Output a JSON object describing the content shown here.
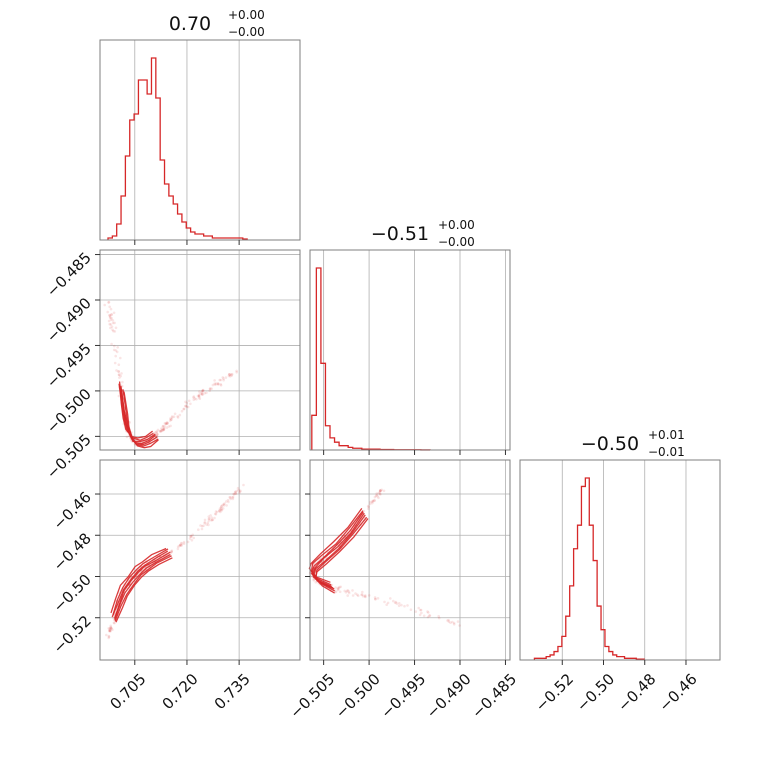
{
  "color": "#d62728",
  "chart_data": [
    {
      "type": "histogram",
      "panel": "hist-0",
      "title": {
        "value": "0.70",
        "plus": "+0.00",
        "minus": "−0.00"
      },
      "xlim": [
        0.695,
        0.7525
      ],
      "x_ticks": [
        0.705,
        0.72,
        0.735
      ],
      "x_ticklabels": [],
      "bins": {
        "start": 0.6973,
        "width": 0.00125,
        "counts": [
          1,
          2,
          8,
          22,
          42,
          60,
          63,
          80,
          80,
          73,
          91,
          71,
          40,
          28,
          22,
          18,
          13,
          9,
          6,
          4,
          3,
          3,
          2,
          2,
          1,
          1,
          1,
          1,
          1,
          1,
          1,
          0.5
        ]
      }
    },
    {
      "type": "scatter",
      "panel": "scatter-1-0",
      "xlim": [
        0.695,
        0.7525
      ],
      "ylim": [
        -0.5065,
        -0.4845
      ],
      "x_ticks": [
        0.705,
        0.72,
        0.735
      ],
      "x_ticklabels": [],
      "y_ticks": [
        -0.485,
        -0.49,
        -0.495,
        -0.5,
        -0.505
      ],
      "y_ticklabels": [
        "−0.485",
        "−0.490",
        "−0.495",
        "−0.500",
        "−0.505"
      ],
      "curve": {
        "x": [
          0.6975,
          0.699,
          0.7,
          0.701,
          0.702,
          0.7025,
          0.7035,
          0.705,
          0.707,
          0.709,
          0.711,
          0.713,
          0.716,
          0.72,
          0.725,
          0.73,
          0.736
        ],
        "y": [
          -0.4903,
          -0.4935,
          -0.4965,
          -0.4995,
          -0.502,
          -0.5035,
          -0.5048,
          -0.5056,
          -0.5057,
          -0.5055,
          -0.5049,
          -0.5041,
          -0.5029,
          -0.5015,
          -0.5001,
          -0.4988,
          -0.4975
        ]
      }
    },
    {
      "type": "histogram",
      "panel": "hist-1",
      "title": {
        "value": "−0.51",
        "plus": "+0.00",
        "minus": "−0.00"
      },
      "xlim": [
        -0.5065,
        -0.4845
      ],
      "x_ticks": [
        -0.505,
        -0.5,
        -0.495,
        -0.49,
        -0.485
      ],
      "x_ticklabels": [],
      "bins": {
        "start": -0.5063,
        "width": 0.0005,
        "counts": [
          40,
          210,
          100,
          28,
          14,
          9,
          5,
          5,
          3,
          2,
          2,
          1,
          1,
          1,
          1,
          0.5,
          0.5,
          0.5,
          0.3,
          0.3,
          0.3,
          0.2,
          0.2,
          0.2,
          0.1,
          0.1
        ]
      }
    },
    {
      "type": "scatter",
      "panel": "scatter-2-0",
      "xlim": [
        0.695,
        0.7525
      ],
      "ylim": [
        -0.5405,
        -0.4435
      ],
      "x_ticks": [
        0.705,
        0.72,
        0.735
      ],
      "x_ticklabels": [
        "0.705",
        "0.720",
        "0.735"
      ],
      "y_ticks": [
        -0.46,
        -0.48,
        -0.5,
        -0.52
      ],
      "y_ticklabels": [
        "−0.46",
        "−0.48",
        "−0.50",
        "−0.52"
      ],
      "curve": {
        "x": [
          0.6975,
          0.699,
          0.7005,
          0.702,
          0.704,
          0.706,
          0.708,
          0.711,
          0.715,
          0.72,
          0.726,
          0.731,
          0.736
        ],
        "y": [
          -0.529,
          -0.52,
          -0.513,
          -0.507,
          -0.502,
          -0.498,
          -0.4955,
          -0.492,
          -0.4885,
          -0.483,
          -0.4735,
          -0.4645,
          -0.4565
        ]
      }
    },
    {
      "type": "scatter",
      "panel": "scatter-2-1",
      "xlim": [
        -0.5065,
        -0.4845
      ],
      "ylim": [
        -0.5405,
        -0.4435
      ],
      "x_ticks": [
        -0.505,
        -0.5,
        -0.495,
        -0.49,
        -0.485
      ],
      "x_ticklabels": [
        "−0.505",
        "−0.500",
        "−0.495",
        "−0.490",
        "−0.485"
      ],
      "y_ticks": [
        -0.46,
        -0.48,
        -0.5,
        -0.52
      ],
      "y_ticklabels": [],
      "curve": {
        "x": [
          -0.4985,
          -0.5005,
          -0.502,
          -0.5035,
          -0.505,
          -0.506,
          -0.5062,
          -0.5055,
          -0.504,
          -0.502,
          -0.499,
          -0.495,
          -0.49
        ],
        "y": [
          -0.4575,
          -0.4695,
          -0.4785,
          -0.4855,
          -0.4915,
          -0.4955,
          -0.499,
          -0.5025,
          -0.5055,
          -0.508,
          -0.511,
          -0.516,
          -0.5235
        ]
      }
    },
    {
      "type": "histogram",
      "panel": "hist-2",
      "title": {
        "value": "−0.50",
        "plus": "+0.01",
        "minus": "−0.01"
      },
      "xlim": [
        -0.5405,
        -0.4435
      ],
      "x_ticks": [
        -0.52,
        -0.5,
        -0.48,
        -0.46
      ],
      "x_ticklabels": [
        "−0.52",
        "−0.50",
        "−0.48",
        "−0.46"
      ],
      "bins": {
        "start": -0.5335,
        "width": 0.0019,
        "counts": [
          1,
          1,
          1,
          2,
          3,
          5,
          8,
          14,
          26,
          44,
          66,
          80,
          103,
          108,
          80,
          59,
          32,
          18,
          8,
          5,
          3,
          2,
          2,
          1,
          1,
          1,
          0.5,
          0.5
        ]
      }
    }
  ]
}
